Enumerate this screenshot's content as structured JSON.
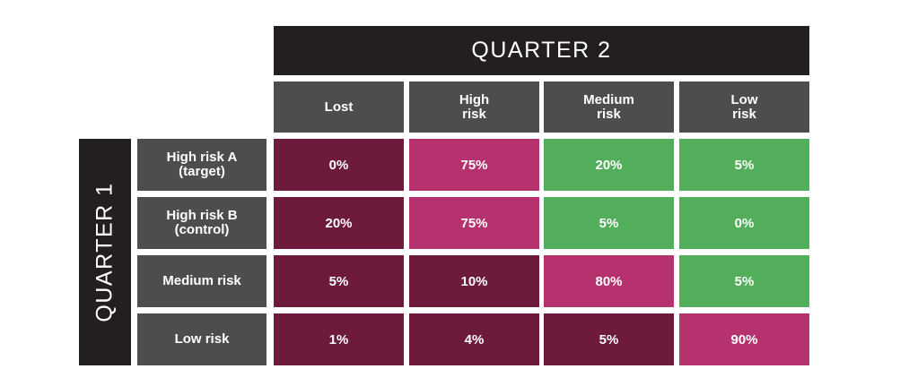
{
  "chart_data": {
    "type": "table",
    "title": "QUARTER 2",
    "row_axis_label": "QUARTER 1",
    "columns": [
      "Lost",
      "High\nrisk",
      "Medium\nrisk",
      "Low\nrisk"
    ],
    "rows": [
      "High risk A\n(target)",
      "High risk B\n(control)",
      "Medium risk",
      "Low risk"
    ],
    "values": [
      [
        0,
        75,
        20,
        5
      ],
      [
        20,
        75,
        5,
        0
      ],
      [
        5,
        10,
        80,
        5
      ],
      [
        1,
        4,
        5,
        90
      ]
    ],
    "labels": [
      [
        "0%",
        "75%",
        "20%",
        "5%"
      ],
      [
        "20%",
        "75%",
        "5%",
        "0%"
      ],
      [
        "5%",
        "10%",
        "80%",
        "5%"
      ],
      [
        "1%",
        "4%",
        "5%",
        "90%"
      ]
    ],
    "cell_categories": [
      [
        "dark",
        "pink",
        "green",
        "green"
      ],
      [
        "dark",
        "pink",
        "green",
        "green"
      ],
      [
        "dark",
        "dark",
        "pink",
        "green"
      ],
      [
        "dark",
        "dark",
        "dark",
        "pink"
      ]
    ],
    "colors": {
      "dark": "#6e1a3c",
      "pink": "#b5326e",
      "green": "#52ae5a",
      "header": "#4d4d4d",
      "title_bar": "#231f20"
    }
  }
}
